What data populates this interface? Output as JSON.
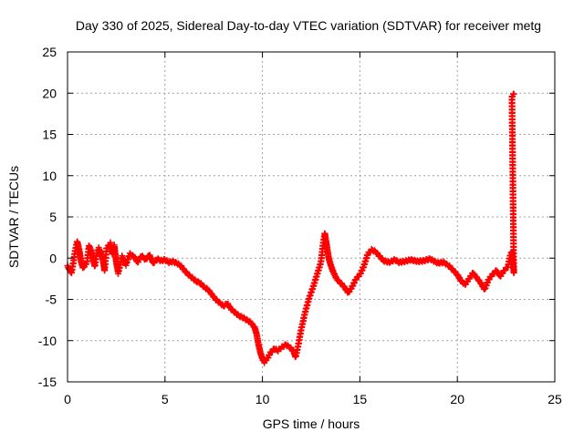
{
  "chart_data": {
    "type": "scatter",
    "title": "Day 330 of 2025, Sidereal Day-to-day VTEC variation (SDTVAR) for receiver metg",
    "xlabel": "GPS time / hours",
    "ylabel": "SDTVAR / TECUs",
    "xlim": [
      0,
      25
    ],
    "ylim": [
      -15,
      25
    ],
    "xticks": [
      "0",
      "5",
      "10",
      "15",
      "20",
      "25"
    ],
    "yticks": [
      "-15",
      "-10",
      "-5",
      "0",
      "5",
      "10",
      "15",
      "20",
      "25"
    ],
    "grid": true,
    "marker": "+",
    "series_color": "#ff0000",
    "series": [
      {
        "name": "SDTVAR",
        "points": [
          [
            0.0,
            -1.0
          ],
          [
            0.2,
            -1.8
          ],
          [
            0.3,
            -0.5
          ],
          [
            0.4,
            1.0
          ],
          [
            0.5,
            2.0
          ],
          [
            0.6,
            1.0
          ],
          [
            0.7,
            -0.5
          ],
          [
            0.8,
            -1.2
          ],
          [
            1.0,
            -0.5
          ],
          [
            1.1,
            1.5
          ],
          [
            1.2,
            1.0
          ],
          [
            1.4,
            -1.0
          ],
          [
            1.5,
            0.5
          ],
          [
            1.6,
            1.2
          ],
          [
            1.8,
            0.0
          ],
          [
            1.9,
            -1.5
          ],
          [
            2.0,
            1.2
          ],
          [
            2.2,
            1.8
          ],
          [
            2.3,
            0.5
          ],
          [
            2.4,
            1.5
          ],
          [
            2.5,
            -0.5
          ],
          [
            2.6,
            -1.8
          ],
          [
            2.8,
            0.2
          ],
          [
            3.0,
            -0.8
          ],
          [
            3.2,
            0.5
          ],
          [
            3.4,
            0.2
          ],
          [
            3.6,
            -0.5
          ],
          [
            3.8,
            0.3
          ],
          [
            4.0,
            -0.2
          ],
          [
            4.2,
            0.4
          ],
          [
            4.4,
            -0.6
          ],
          [
            4.6,
            -0.1
          ],
          [
            4.8,
            -0.3
          ],
          [
            5.0,
            -0.2
          ],
          [
            5.2,
            -0.5
          ],
          [
            5.4,
            -0.4
          ],
          [
            5.6,
            -0.6
          ],
          [
            5.8,
            -0.9
          ],
          [
            6.0,
            -1.5
          ],
          [
            6.2,
            -2.0
          ],
          [
            6.4,
            -2.4
          ],
          [
            6.6,
            -2.8
          ],
          [
            6.8,
            -3.0
          ],
          [
            7.0,
            -3.5
          ],
          [
            7.2,
            -3.8
          ],
          [
            7.4,
            -4.4
          ],
          [
            7.6,
            -5.0
          ],
          [
            7.8,
            -5.4
          ],
          [
            8.0,
            -5.8
          ],
          [
            8.2,
            -5.5
          ],
          [
            8.4,
            -6.2
          ],
          [
            8.6,
            -6.6
          ],
          [
            8.8,
            -7.0
          ],
          [
            9.0,
            -7.2
          ],
          [
            9.2,
            -7.5
          ],
          [
            9.4,
            -7.8
          ],
          [
            9.6,
            -8.4
          ],
          [
            9.7,
            -9.2
          ],
          [
            9.8,
            -10.5
          ],
          [
            9.9,
            -11.5
          ],
          [
            10.0,
            -12.2
          ],
          [
            10.1,
            -12.6
          ],
          [
            10.2,
            -12.3
          ],
          [
            10.3,
            -12.0
          ],
          [
            10.4,
            -11.5
          ],
          [
            10.6,
            -11.0
          ],
          [
            10.8,
            -11.2
          ],
          [
            11.0,
            -10.8
          ],
          [
            11.2,
            -10.5
          ],
          [
            11.4,
            -10.8
          ],
          [
            11.6,
            -11.3
          ],
          [
            11.7,
            -12.0
          ],
          [
            11.8,
            -11.0
          ],
          [
            12.0,
            -8.5
          ],
          [
            12.2,
            -6.5
          ],
          [
            12.4,
            -4.8
          ],
          [
            12.6,
            -3.5
          ],
          [
            12.8,
            -2.0
          ],
          [
            13.0,
            -0.5
          ],
          [
            13.1,
            1.5
          ],
          [
            13.2,
            3.0
          ],
          [
            13.3,
            1.5
          ],
          [
            13.4,
            0.0
          ],
          [
            13.5,
            -0.8
          ],
          [
            13.6,
            -1.5
          ],
          [
            13.8,
            -2.5
          ],
          [
            14.0,
            -3.0
          ],
          [
            14.2,
            -3.5
          ],
          [
            14.4,
            -4.2
          ],
          [
            14.6,
            -3.5
          ],
          [
            14.8,
            -2.5
          ],
          [
            15.0,
            -2.0
          ],
          [
            15.2,
            -1.0
          ],
          [
            15.4,
            0.5
          ],
          [
            15.6,
            1.0
          ],
          [
            15.8,
            0.8
          ],
          [
            16.2,
            -0.3
          ],
          [
            16.5,
            -0.5
          ],
          [
            16.8,
            -0.2
          ],
          [
            17.0,
            -0.5
          ],
          [
            17.3,
            -0.4
          ],
          [
            17.6,
            -0.2
          ],
          [
            18.0,
            -0.4
          ],
          [
            18.3,
            -0.3
          ],
          [
            18.6,
            -0.1
          ],
          [
            19.0,
            -0.6
          ],
          [
            19.3,
            -0.5
          ],
          [
            19.6,
            -1.0
          ],
          [
            19.8,
            -1.5
          ],
          [
            20.0,
            -2.0
          ],
          [
            20.2,
            -2.8
          ],
          [
            20.4,
            -3.2
          ],
          [
            20.6,
            -2.5
          ],
          [
            20.8,
            -1.8
          ],
          [
            21.0,
            -2.4
          ],
          [
            21.2,
            -3.0
          ],
          [
            21.4,
            -3.8
          ],
          [
            21.6,
            -2.6
          ],
          [
            21.8,
            -2.0
          ],
          [
            22.0,
            -1.5
          ],
          [
            22.2,
            -2.2
          ],
          [
            22.4,
            -1.5
          ],
          [
            22.6,
            -1.0
          ],
          [
            22.7,
            0.2
          ],
          [
            22.8,
            0.8
          ],
          [
            22.9,
            -1.8
          ],
          [
            22.8,
            19.6
          ],
          [
            22.9,
            19.9
          ]
        ]
      }
    ]
  }
}
